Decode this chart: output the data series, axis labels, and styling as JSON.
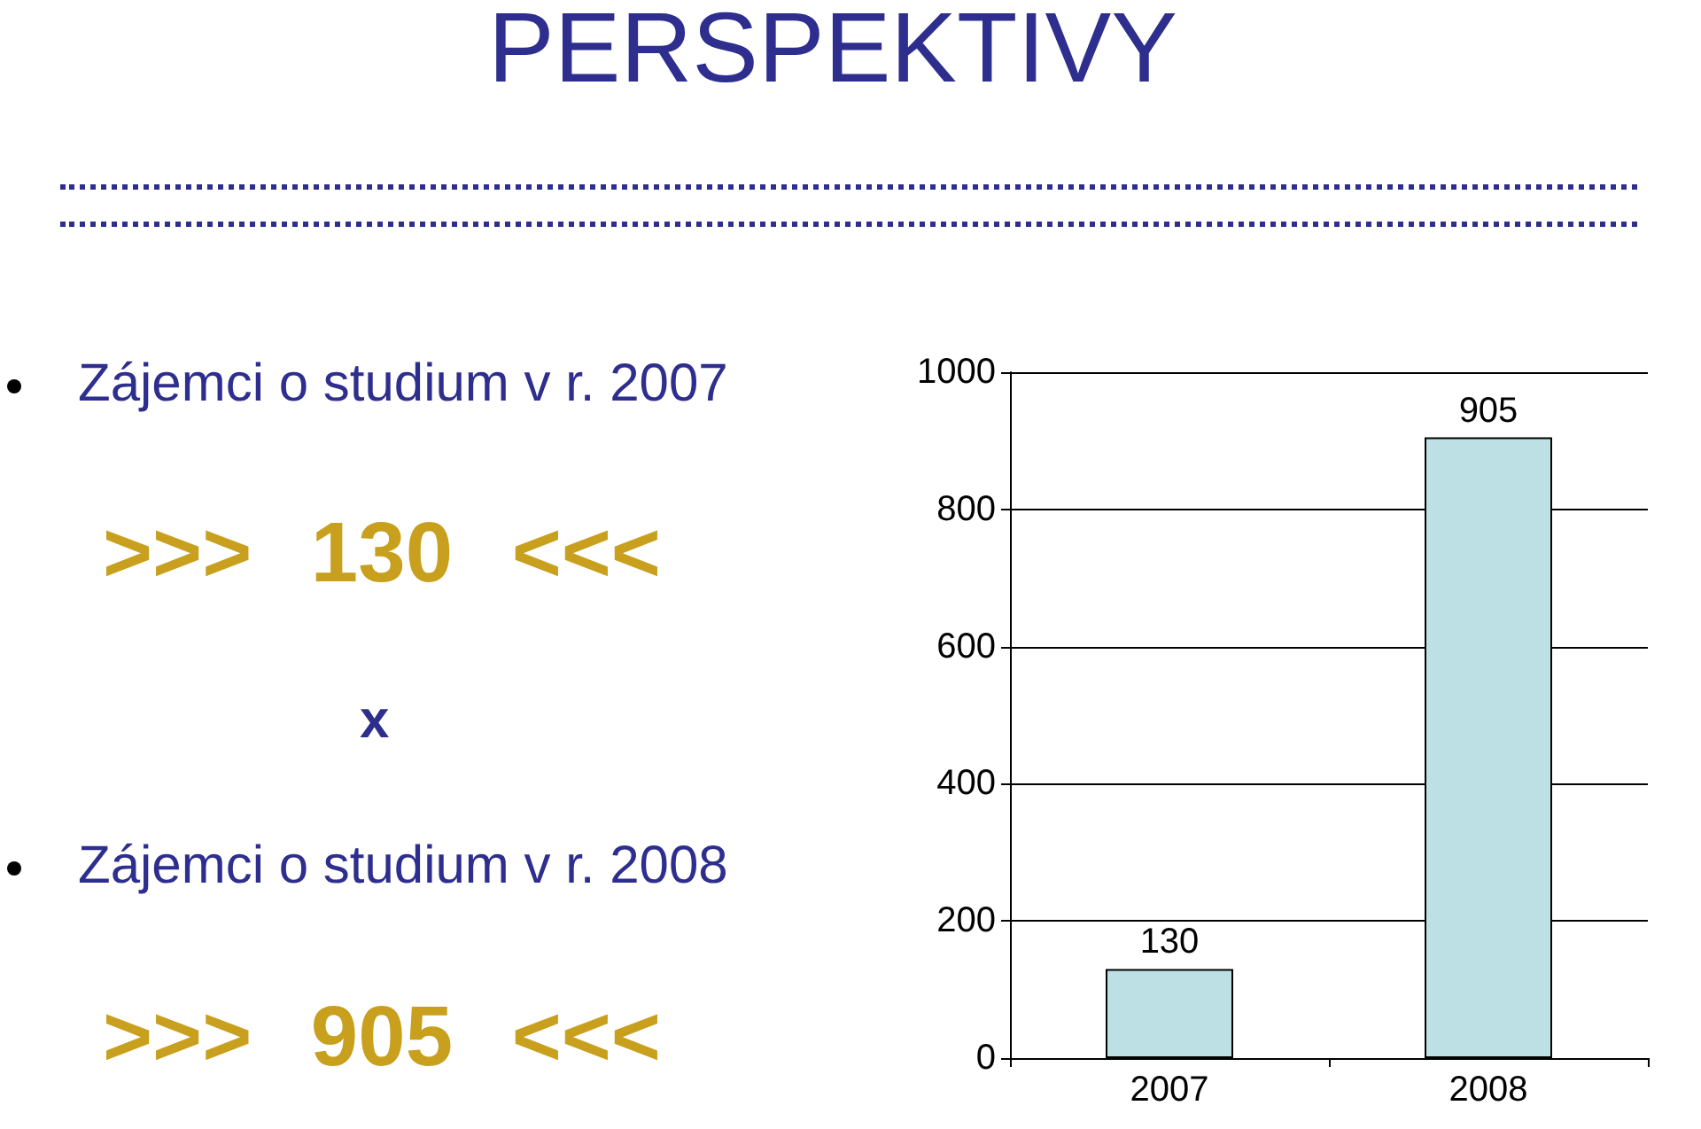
{
  "chart_data": {
    "type": "bar",
    "title": "PERSPEKTIVY",
    "annotations": [
      "Zájemci o studium v r. 2007",
      ">>> 130 <<<",
      "x",
      "Zájemci o studium v r. 2008",
      ">>> 905 <<<"
    ],
    "categories": [
      "2007",
      "2008"
    ],
    "values": [
      130,
      905
    ],
    "color": "#bde0e4",
    "ylim": [
      0,
      1000
    ],
    "yticks": [
      0,
      200,
      400,
      600,
      800,
      1000
    ],
    "grid": "y",
    "data_labels": true
  }
}
